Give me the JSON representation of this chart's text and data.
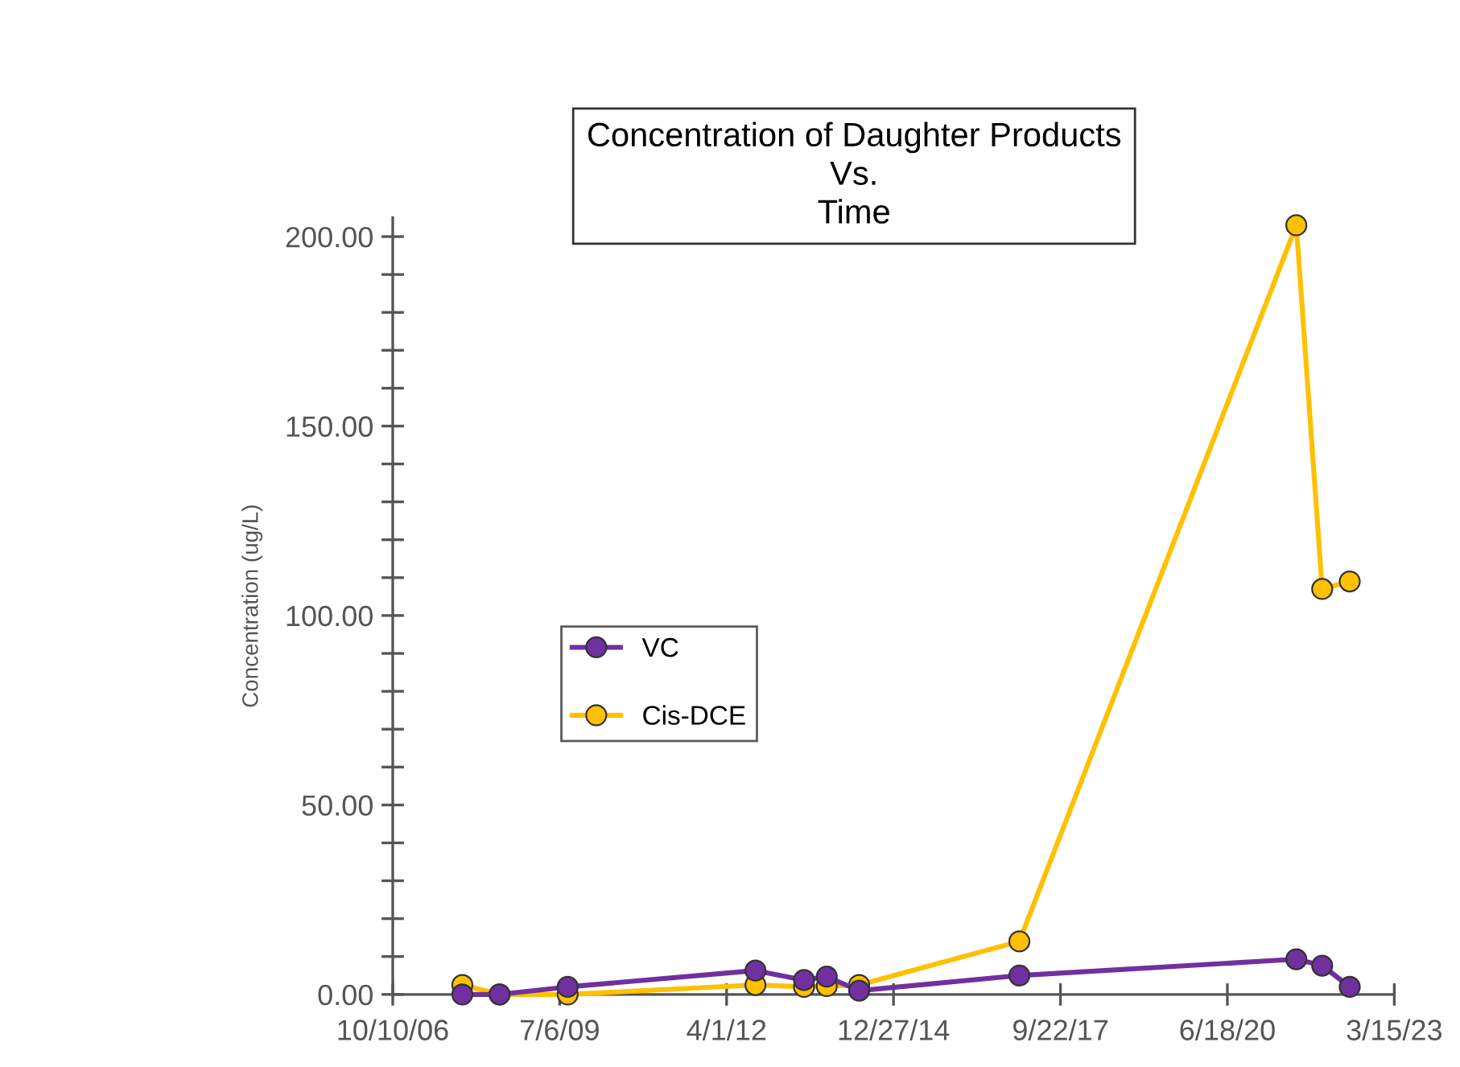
{
  "chart_data": {
    "type": "line",
    "title": "Concentration of Daughter Products\nVs.\nTime",
    "ylabel": "Concentration (ug/L)",
    "x": [
      "2007-12-01",
      "2008-07-11",
      "2009-08-23",
      "2012-09-21",
      "2013-07-09",
      "2013-11-22",
      "2014-06-04",
      "2017-01-19",
      "2021-08-05",
      "2022-01-07",
      "2022-06-21"
    ],
    "series": [
      {
        "name": "VC",
        "color": "#7030a0",
        "values": [
          0,
          0,
          2,
          6.3,
          3.8,
          4.7,
          1,
          5,
          9.3,
          7.6,
          2
        ]
      },
      {
        "name": "Cis-DCE",
        "color": "#ffc000",
        "values": [
          2.5,
          0,
          0,
          2.5,
          2,
          2.2,
          2.5,
          14,
          203,
          107,
          109
        ]
      }
    ],
    "xlim": [
      "2006-10-10",
      "2023-03-15"
    ],
    "xticks": [
      {
        "value": "2006-10-10",
        "label": "10/10/06"
      },
      {
        "value": "2009-07-06",
        "label": "7/6/09"
      },
      {
        "value": "2012-04-01",
        "label": "4/1/12"
      },
      {
        "value": "2014-12-27",
        "label": "12/27/14"
      },
      {
        "value": "2017-09-22",
        "label": "9/22/17"
      },
      {
        "value": "2020-06-18",
        "label": "6/18/20"
      },
      {
        "value": "2023-03-15",
        "label": "3/15/23"
      }
    ],
    "ylim": [
      0,
      205
    ],
    "yticks": [
      {
        "value": 0,
        "label": "0.00"
      },
      {
        "value": 10,
        "label": null
      },
      {
        "value": 20,
        "label": null
      },
      {
        "value": 30,
        "label": null
      },
      {
        "value": 40,
        "label": null
      },
      {
        "value": 50,
        "label": "50.00"
      },
      {
        "value": 60,
        "label": null
      },
      {
        "value": 70,
        "label": null
      },
      {
        "value": 80,
        "label": null
      },
      {
        "value": 90,
        "label": null
      },
      {
        "value": 100,
        "label": "100.00"
      },
      {
        "value": 110,
        "label": null
      },
      {
        "value": 120,
        "label": null
      },
      {
        "value": 130,
        "label": null
      },
      {
        "value": 140,
        "label": null
      },
      {
        "value": 150,
        "label": "150.00"
      },
      {
        "value": 160,
        "label": null
      },
      {
        "value": 170,
        "label": null
      },
      {
        "value": 180,
        "label": null
      },
      {
        "value": 190,
        "label": null
      },
      {
        "value": 200,
        "label": "200.00"
      }
    ],
    "grid": false,
    "legend": "center left",
    "marker": "circle",
    "line_style": "solid"
  }
}
